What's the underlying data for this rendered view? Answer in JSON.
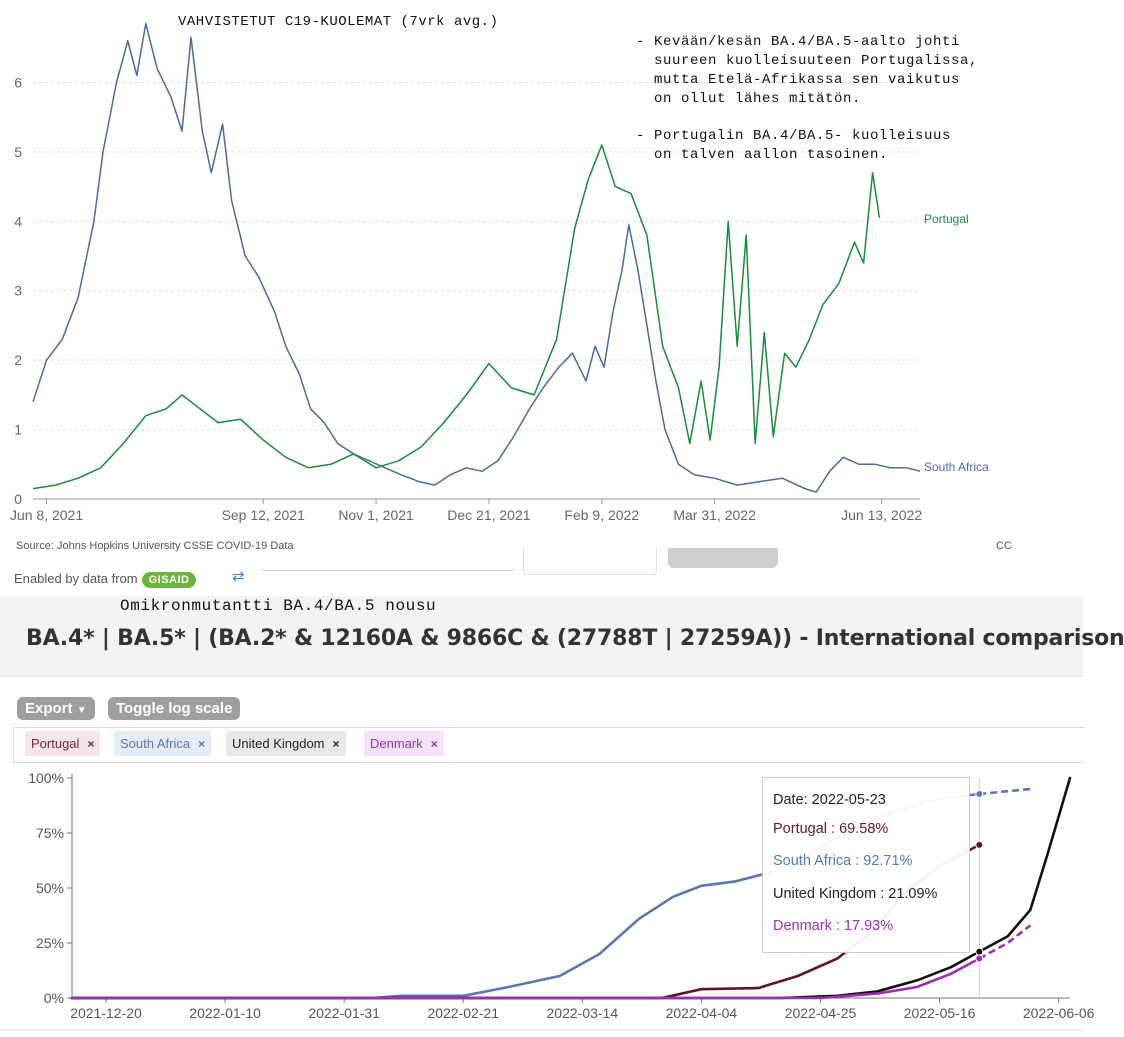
{
  "overlay": {
    "title": "VAHVISTETUT C19-KUOLEMAT (7vrk avg.)",
    "note1": "- Kevään/kesän BA.4/BA.5-aalto johti\n  suureen kuolleisuuteen Portugalissa,\n  mutta Etelä-Afrikassa sen vaikutus\n  on ollut lähes mitätön.",
    "note2": "- Portugalin BA.4/BA.5- kuolleisuus\n  on talven aallon tasoinen.",
    "subtitle": "Omikronmutantti BA.4/BA.5 nousu"
  },
  "owid": {
    "source": "Source: Johns Hopkins University CSSE COVID-19 Data",
    "license": "CC"
  },
  "covspectrum": {
    "enabled_by": "Enabled by data from",
    "logo": "GISAID",
    "title": "BA.4* | BA.5* | (BA.2* & 12160A & 9866C & (27788T | 27259A)) - International comparison",
    "export_label": "Export",
    "export_icon": "caret-down-icon",
    "log_label": "Toggle log scale",
    "chips": [
      {
        "label": "Portugal",
        "color": "#7a1f3d",
        "bg": "#f4e6eb"
      },
      {
        "label": "South Africa",
        "color": "#5a78ad",
        "bg": "#e6ebf4"
      },
      {
        "label": "United Kingdom",
        "color": "#222222",
        "bg": "#e8e8e8"
      },
      {
        "label": "Denmark",
        "color": "#9b2fb5",
        "bg": "#f2e4f6"
      }
    ],
    "remove_glyph": "×",
    "tooltip": {
      "date_line": "Date: 2022-05-23",
      "lines": [
        {
          "text": "Portugal : 69.58%",
          "color": "#6b1535"
        },
        {
          "text": "South Africa : 92.71%",
          "color": "#5a78ad"
        },
        {
          "text": "United Kingdom : 21.09%",
          "color": "#222222"
        },
        {
          "text": "Denmark : 17.93%",
          "color": "#9b2fb5"
        }
      ]
    }
  },
  "chart_data": [
    {
      "type": "line",
      "title": "VAHVISTETUT C19-KUOLEMAT (7vrk avg.)",
      "xlabel": "",
      "ylabel": "",
      "x_range": [
        "2021-06-02",
        "2022-06-30"
      ],
      "ylim": [
        0,
        6.9
      ],
      "y_ticks": [
        0,
        1,
        2,
        3,
        4,
        5,
        6
      ],
      "x_ticks": [
        {
          "date": "2021-06-08",
          "label": "Jun 8, 2021"
        },
        {
          "date": "2021-09-12",
          "label": "Sep 12, 2021"
        },
        {
          "date": "2021-11-01",
          "label": "Nov 1, 2021"
        },
        {
          "date": "2021-12-21",
          "label": "Dec 21, 2021"
        },
        {
          "date": "2022-02-09",
          "label": "Feb 9, 2022"
        },
        {
          "date": "2022-03-31",
          "label": "Mar 31, 2022"
        },
        {
          "date": "2022-06-13",
          "label": "Jun 13, 2022"
        }
      ],
      "grid": "horizontal dashed",
      "series": [
        {
          "name": "South Africa",
          "color": "#4c6a9c",
          "points": [
            [
              "2021-06-02",
              1.4
            ],
            [
              "2021-06-08",
              2.0
            ],
            [
              "2021-06-15",
              2.3
            ],
            [
              "2021-06-22",
              2.9
            ],
            [
              "2021-06-29",
              4.0
            ],
            [
              "2021-07-03",
              5.0
            ],
            [
              "2021-07-09",
              6.0
            ],
            [
              "2021-07-14",
              6.6
            ],
            [
              "2021-07-18",
              6.1
            ],
            [
              "2021-07-22",
              6.85
            ],
            [
              "2021-07-27",
              6.2
            ],
            [
              "2021-08-02",
              5.8
            ],
            [
              "2021-08-07",
              5.3
            ],
            [
              "2021-08-11",
              6.65
            ],
            [
              "2021-08-16",
              5.3
            ],
            [
              "2021-08-20",
              4.7
            ],
            [
              "2021-08-25",
              5.4
            ],
            [
              "2021-08-29",
              4.3
            ],
            [
              "2021-09-04",
              3.5
            ],
            [
              "2021-09-10",
              3.2
            ],
            [
              "2021-09-17",
              2.7
            ],
            [
              "2021-09-22",
              2.2
            ],
            [
              "2021-09-28",
              1.8
            ],
            [
              "2021-10-03",
              1.3
            ],
            [
              "2021-10-09",
              1.1
            ],
            [
              "2021-10-15",
              0.8
            ],
            [
              "2021-10-22",
              0.65
            ],
            [
              "2021-10-29",
              0.55
            ],
            [
              "2021-11-05",
              0.45
            ],
            [
              "2021-11-12",
              0.35
            ],
            [
              "2021-11-20",
              0.25
            ],
            [
              "2021-11-27",
              0.2
            ],
            [
              "2021-12-04",
              0.35
            ],
            [
              "2021-12-11",
              0.45
            ],
            [
              "2021-12-18",
              0.4
            ],
            [
              "2021-12-25",
              0.55
            ],
            [
              "2022-01-01",
              0.9
            ],
            [
              "2022-01-08",
              1.3
            ],
            [
              "2022-01-14",
              1.6
            ],
            [
              "2022-01-21",
              1.9
            ],
            [
              "2022-01-27",
              2.1
            ],
            [
              "2022-02-02",
              1.7
            ],
            [
              "2022-02-06",
              2.2
            ],
            [
              "2022-02-10",
              1.9
            ],
            [
              "2022-02-14",
              2.7
            ],
            [
              "2022-02-18",
              3.3
            ],
            [
              "2022-02-21",
              3.95
            ],
            [
              "2022-02-25",
              3.3
            ],
            [
              "2022-03-01",
              2.5
            ],
            [
              "2022-03-05",
              1.7
            ],
            [
              "2022-03-09",
              1.0
            ],
            [
              "2022-03-15",
              0.5
            ],
            [
              "2022-03-22",
              0.35
            ],
            [
              "2022-03-31",
              0.3
            ],
            [
              "2022-04-10",
              0.2
            ],
            [
              "2022-04-20",
              0.25
            ],
            [
              "2022-04-30",
              0.3
            ],
            [
              "2022-05-10",
              0.15
            ],
            [
              "2022-05-15",
              0.1
            ],
            [
              "2022-05-21",
              0.4
            ],
            [
              "2022-05-27",
              0.6
            ],
            [
              "2022-06-03",
              0.5
            ],
            [
              "2022-06-10",
              0.5
            ],
            [
              "2022-06-17",
              0.45
            ],
            [
              "2022-06-24",
              0.45
            ],
            [
              "2022-06-30",
              0.4
            ]
          ]
        },
        {
          "name": "Portugal",
          "color": "#1a8a3c",
          "points": [
            [
              "2021-06-02",
              0.15
            ],
            [
              "2021-06-12",
              0.2
            ],
            [
              "2021-06-22",
              0.3
            ],
            [
              "2021-07-02",
              0.45
            ],
            [
              "2021-07-12",
              0.8
            ],
            [
              "2021-07-22",
              1.2
            ],
            [
              "2021-07-31",
              1.3
            ],
            [
              "2021-08-07",
              1.5
            ],
            [
              "2021-08-15",
              1.3
            ],
            [
              "2021-08-23",
              1.1
            ],
            [
              "2021-09-02",
              1.15
            ],
            [
              "2021-09-12",
              0.85
            ],
            [
              "2021-09-22",
              0.6
            ],
            [
              "2021-10-02",
              0.45
            ],
            [
              "2021-10-12",
              0.5
            ],
            [
              "2021-10-22",
              0.65
            ],
            [
              "2021-11-01",
              0.45
            ],
            [
              "2021-11-11",
              0.55
            ],
            [
              "2021-11-21",
              0.75
            ],
            [
              "2021-12-01",
              1.1
            ],
            [
              "2021-12-11",
              1.5
            ],
            [
              "2021-12-21",
              1.95
            ],
            [
              "2021-12-31",
              1.6
            ],
            [
              "2022-01-10",
              1.5
            ],
            [
              "2022-01-20",
              2.3
            ],
            [
              "2022-01-28",
              3.9
            ],
            [
              "2022-02-03",
              4.6
            ],
            [
              "2022-02-09",
              5.1
            ],
            [
              "2022-02-15",
              4.5
            ],
            [
              "2022-02-22",
              4.4
            ],
            [
              "2022-03-01",
              3.8
            ],
            [
              "2022-03-08",
              2.2
            ],
            [
              "2022-03-15",
              1.6
            ],
            [
              "2022-03-20",
              0.8
            ],
            [
              "2022-03-25",
              1.7
            ],
            [
              "2022-03-29",
              0.85
            ],
            [
              "2022-04-02",
              1.9
            ],
            [
              "2022-04-06",
              4.0
            ],
            [
              "2022-04-10",
              2.2
            ],
            [
              "2022-04-14",
              3.8
            ],
            [
              "2022-04-18",
              0.8
            ],
            [
              "2022-04-22",
              2.4
            ],
            [
              "2022-04-26",
              0.9
            ],
            [
              "2022-05-01",
              2.1
            ],
            [
              "2022-05-06",
              1.9
            ],
            [
              "2022-05-12",
              2.3
            ],
            [
              "2022-05-18",
              2.8
            ],
            [
              "2022-05-25",
              3.1
            ],
            [
              "2022-06-01",
              3.7
            ],
            [
              "2022-06-05",
              3.4
            ],
            [
              "2022-06-09",
              4.7
            ],
            [
              "2022-06-12",
              4.05
            ]
          ]
        }
      ]
    },
    {
      "type": "line",
      "title": "BA.4* | BA.5* | (BA.2* & 12160A & 9866C & (27788T | 27259A)) - International comparison",
      "xlabel": "",
      "ylabel": "",
      "x_range": [
        "2021-12-14",
        "2022-06-08"
      ],
      "ylim": [
        0,
        1
      ],
      "y_ticks": [
        "0%",
        "25%",
        "50%",
        "75%",
        "100%"
      ],
      "x_ticks": [
        "2021-12-20",
        "2022-01-10",
        "2022-01-31",
        "2022-02-21",
        "2022-03-14",
        "2022-04-04",
        "2022-04-25",
        "2022-05-16",
        "2022-06-06"
      ],
      "hover_date": "2022-05-23",
      "series": [
        {
          "name": "South Africa",
          "color": "#5a78ad",
          "points": [
            [
              "2021-12-14",
              0.0
            ],
            [
              "2022-02-05",
              0.0
            ],
            [
              "2022-02-10",
              0.01
            ],
            [
              "2022-02-21",
              0.01
            ],
            [
              "2022-03-01",
              0.05
            ],
            [
              "2022-03-10",
              0.1
            ],
            [
              "2022-03-17",
              0.2
            ],
            [
              "2022-03-24",
              0.36
            ],
            [
              "2022-03-30",
              0.46
            ],
            [
              "2022-04-04",
              0.51
            ],
            [
              "2022-04-10",
              0.53
            ],
            [
              "2022-04-16",
              0.57
            ],
            [
              "2022-04-21",
              0.62
            ],
            [
              "2022-04-28",
              0.73
            ],
            [
              "2022-05-05",
              0.82
            ],
            [
              "2022-05-12",
              0.88
            ],
            [
              "2022-05-17",
              0.91
            ],
            [
              "2022-05-23",
              0.9271
            ],
            [
              "2022-05-30",
              0.945
            ],
            [
              "2022-06-01",
              0.95
            ]
          ],
          "dashed_after": "2022-05-23"
        },
        {
          "name": "Portugal",
          "color": "#5c1433",
          "points": [
            [
              "2021-12-14",
              0.0
            ],
            [
              "2022-03-28",
              0.0
            ],
            [
              "2022-04-04",
              0.04
            ],
            [
              "2022-04-14",
              0.045
            ],
            [
              "2022-04-21",
              0.1
            ],
            [
              "2022-04-28",
              0.18
            ],
            [
              "2022-05-04",
              0.3
            ],
            [
              "2022-05-10",
              0.48
            ],
            [
              "2022-05-16",
              0.6
            ],
            [
              "2022-05-23",
              0.6958
            ]
          ]
        },
        {
          "name": "United Kingdom",
          "color": "#111111",
          "points": [
            [
              "2021-12-14",
              0.0
            ],
            [
              "2022-04-18",
              0.0
            ],
            [
              "2022-04-28",
              0.01
            ],
            [
              "2022-05-05",
              0.03
            ],
            [
              "2022-05-12",
              0.08
            ],
            [
              "2022-05-18",
              0.14
            ],
            [
              "2022-05-23",
              0.2109
            ],
            [
              "2022-05-28",
              0.28
            ],
            [
              "2022-06-01",
              0.4
            ],
            [
              "2022-06-04",
              0.65
            ],
            [
              "2022-06-08",
              1.0
            ]
          ]
        },
        {
          "name": "Denmark",
          "color": "#9b2fb5",
          "points": [
            [
              "2021-12-14",
              0.0
            ],
            [
              "2022-04-25",
              0.0
            ],
            [
              "2022-05-05",
              0.02
            ],
            [
              "2022-05-12",
              0.05
            ],
            [
              "2022-05-18",
              0.11
            ],
            [
              "2022-05-23",
              0.1793
            ],
            [
              "2022-05-28",
              0.25
            ],
            [
              "2022-06-01",
              0.33
            ]
          ],
          "dashed_after": "2022-05-23"
        }
      ]
    }
  ]
}
